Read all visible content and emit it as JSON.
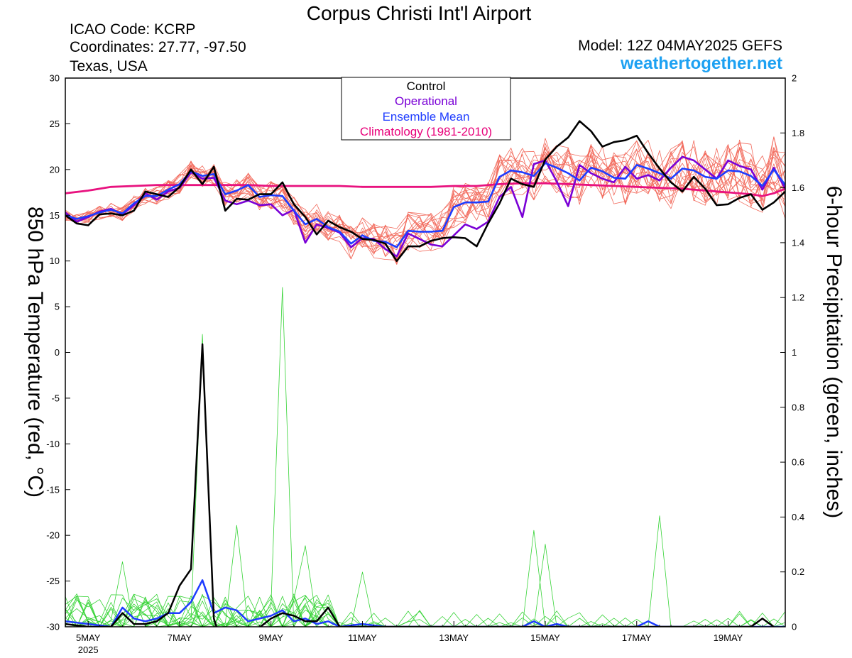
{
  "header": {
    "title": "Corpus Christi Int'l Airport",
    "icao": "ICAO Code: KCRP",
    "coordinates": "Coordinates: 27.77, -97.50",
    "location": "Texas, USA",
    "model": "Model: 12Z 04MAY2025 GEFS",
    "website": "weathertogether.net"
  },
  "chart_data": {
    "type": "line",
    "left_axis": {
      "label": "850 hPa Temperature (red, °C)",
      "range": [
        -30,
        30
      ],
      "ticks": [
        "30",
        "25",
        "20",
        "15",
        "10",
        "5",
        "0",
        "-5",
        "-10",
        "-15",
        "-20",
        "-25",
        "-30"
      ]
    },
    "right_axis": {
      "label": "6-hour Precipitation (green, inches)",
      "range": [
        0,
        2
      ],
      "ticks": [
        "2",
        "1.8",
        "1.6",
        "1.4",
        "1.2",
        "1",
        "0.8",
        "0.6",
        "0.4",
        "0.2",
        "0"
      ]
    },
    "x_axis": {
      "start_day": 4.5,
      "end_day": 20.25,
      "ticks": [
        {
          "day": 5,
          "label": "5MAY",
          "sub": "2025"
        },
        {
          "day": 7,
          "label": "7MAY"
        },
        {
          "day": 9,
          "label": "9MAY"
        },
        {
          "day": 11,
          "label": "11MAY"
        },
        {
          "day": 13,
          "label": "13MAY"
        },
        {
          "day": 15,
          "label": "15MAY"
        },
        {
          "day": 17,
          "label": "17MAY"
        },
        {
          "day": 19,
          "label": "19MAY"
        }
      ]
    },
    "legend": [
      {
        "name": "Control",
        "color": "#000000"
      },
      {
        "name": "Operational",
        "color": "#7a00d6"
      },
      {
        "name": "Ensemble Mean",
        "color": "#1e3cff"
      },
      {
        "name": "Climatology (1981-2010)",
        "color": "#e8007a"
      }
    ],
    "colors": {
      "control": "#000000",
      "operational": "#7a00d6",
      "mean": "#1e3cff",
      "climatology": "#e8127f",
      "members_temp": "#f26a5c",
      "members_precip": "#36d336"
    },
    "temperature": {
      "control": [
        [
          4.5,
          15.0
        ],
        [
          4.75,
          14.1
        ],
        [
          5.0,
          13.9
        ],
        [
          5.25,
          15.1
        ],
        [
          5.5,
          15.2
        ],
        [
          5.75,
          15.0
        ],
        [
          6.0,
          15.5
        ],
        [
          6.25,
          17.6
        ],
        [
          6.5,
          17.3
        ],
        [
          6.75,
          17.0
        ],
        [
          7.0,
          18.1
        ],
        [
          7.25,
          20.0
        ],
        [
          7.5,
          18.4
        ],
        [
          7.75,
          20.3
        ],
        [
          8.0,
          15.5
        ],
        [
          8.25,
          16.8
        ],
        [
          8.5,
          16.7
        ],
        [
          8.75,
          17.3
        ],
        [
          9.0,
          17.3
        ],
        [
          9.25,
          18.6
        ],
        [
          9.5,
          16.2
        ],
        [
          9.75,
          14.8
        ],
        [
          10.0,
          12.9
        ],
        [
          10.25,
          14.4
        ],
        [
          10.5,
          13.7
        ],
        [
          10.75,
          13.2
        ],
        [
          11.0,
          12.4
        ],
        [
          11.25,
          12.3
        ],
        [
          11.5,
          11.9
        ],
        [
          11.75,
          10.0
        ],
        [
          12.0,
          11.6
        ],
        [
          12.25,
          11.6
        ],
        [
          12.5,
          12.2
        ],
        [
          12.75,
          12.5
        ],
        [
          13.0,
          12.6
        ],
        [
          13.25,
          12.5
        ],
        [
          13.5,
          11.6
        ],
        [
          13.75,
          14.1
        ],
        [
          14.0,
          16.3
        ],
        [
          14.25,
          19.0
        ],
        [
          14.5,
          18.4
        ],
        [
          14.75,
          18.1
        ],
        [
          15.0,
          21.1
        ],
        [
          15.25,
          22.5
        ],
        [
          15.5,
          23.5
        ],
        [
          15.75,
          25.3
        ],
        [
          16.0,
          24.2
        ],
        [
          16.25,
          22.5
        ],
        [
          16.5,
          23.0
        ],
        [
          16.75,
          23.2
        ],
        [
          17.0,
          23.7
        ],
        [
          17.25,
          21.8
        ],
        [
          17.5,
          20.1
        ],
        [
          17.75,
          18.6
        ],
        [
          18.0,
          17.6
        ],
        [
          18.25,
          19.2
        ],
        [
          18.5,
          17.9
        ],
        [
          18.75,
          16.1
        ],
        [
          19.0,
          16.2
        ],
        [
          19.25,
          16.9
        ],
        [
          19.5,
          17.3
        ],
        [
          19.75,
          15.6
        ],
        [
          20.0,
          16.4
        ],
        [
          20.25,
          17.6
        ],
        [
          20.4,
          17.3
        ]
      ],
      "operational": [
        [
          4.5,
          15.3
        ],
        [
          4.75,
          14.3
        ],
        [
          5.0,
          14.8
        ],
        [
          5.25,
          15.4
        ],
        [
          5.5,
          15.7
        ],
        [
          5.75,
          15.1
        ],
        [
          6.0,
          16.1
        ],
        [
          6.25,
          17.4
        ],
        [
          6.5,
          16.7
        ],
        [
          6.75,
          17.6
        ],
        [
          7.0,
          18.0
        ],
        [
          7.25,
          19.7
        ],
        [
          7.5,
          19.0
        ],
        [
          7.75,
          19.1
        ],
        [
          8.0,
          16.6
        ],
        [
          8.25,
          16.2
        ],
        [
          8.5,
          16.6
        ],
        [
          8.75,
          16.1
        ],
        [
          9.0,
          16.2
        ],
        [
          9.25,
          15.0
        ],
        [
          9.5,
          15.6
        ],
        [
          9.75,
          12.0
        ],
        [
          10.0,
          14.0
        ],
        [
          10.25,
          13.6
        ],
        [
          10.5,
          13.1
        ],
        [
          10.75,
          11.5
        ],
        [
          11.0,
          12.5
        ],
        [
          11.25,
          12.4
        ],
        [
          11.5,
          11.3
        ],
        [
          11.75,
          10.5
        ],
        [
          12.0,
          13.0
        ],
        [
          12.25,
          12.4
        ],
        [
          12.5,
          11.8
        ],
        [
          12.75,
          11.6
        ],
        [
          13.0,
          12.8
        ],
        [
          13.25,
          14.0
        ],
        [
          13.5,
          13.5
        ],
        [
          13.75,
          14.3
        ],
        [
          14.0,
          17.0
        ],
        [
          14.25,
          18.1
        ],
        [
          14.5,
          14.8
        ],
        [
          14.75,
          20.6
        ],
        [
          15.0,
          21.0
        ],
        [
          15.25,
          18.7
        ],
        [
          15.5,
          16.0
        ],
        [
          15.75,
          20.5
        ],
        [
          16.0,
          19.6
        ],
        [
          16.25,
          19.0
        ],
        [
          16.5,
          18.6
        ],
        [
          16.75,
          20.3
        ],
        [
          17.0,
          19.0
        ],
        [
          17.25,
          19.4
        ],
        [
          17.5,
          18.8
        ],
        [
          17.75,
          20.2
        ],
        [
          18.0,
          21.4
        ],
        [
          18.25,
          21.0
        ],
        [
          18.5,
          20.0
        ],
        [
          18.75,
          19.0
        ],
        [
          19.0,
          21.0
        ],
        [
          19.25,
          20.4
        ],
        [
          19.5,
          20.0
        ],
        [
          19.75,
          17.8
        ],
        [
          20.0,
          20.2
        ],
        [
          20.25,
          17.9
        ]
      ],
      "mean": [
        [
          4.5,
          15.0
        ],
        [
          4.75,
          14.6
        ],
        [
          5.0,
          14.9
        ],
        [
          5.25,
          15.3
        ],
        [
          5.5,
          15.6
        ],
        [
          5.75,
          15.2
        ],
        [
          6.0,
          16.3
        ],
        [
          6.25,
          17.1
        ],
        [
          6.5,
          17.1
        ],
        [
          6.75,
          17.8
        ],
        [
          7.0,
          18.4
        ],
        [
          7.25,
          19.8
        ],
        [
          7.5,
          19.3
        ],
        [
          7.75,
          19.5
        ],
        [
          8.0,
          17.3
        ],
        [
          8.25,
          17.7
        ],
        [
          8.5,
          18.3
        ],
        [
          8.75,
          17.0
        ],
        [
          9.0,
          17.2
        ],
        [
          9.25,
          17.1
        ],
        [
          9.5,
          15.5
        ],
        [
          9.75,
          14.0
        ],
        [
          10.0,
          14.6
        ],
        [
          10.25,
          13.7
        ],
        [
          10.5,
          13.2
        ],
        [
          10.75,
          11.9
        ],
        [
          11.0,
          12.8
        ],
        [
          11.25,
          12.2
        ],
        [
          11.5,
          12.1
        ],
        [
          11.75,
          11.5
        ],
        [
          12.0,
          13.3
        ],
        [
          12.25,
          13.2
        ],
        [
          12.5,
          13.2
        ],
        [
          12.75,
          13.3
        ],
        [
          13.0,
          15.9
        ],
        [
          13.25,
          16.4
        ],
        [
          13.5,
          16.4
        ],
        [
          13.75,
          16.5
        ],
        [
          14.0,
          19.2
        ],
        [
          14.25,
          19.9
        ],
        [
          14.5,
          19.7
        ],
        [
          14.75,
          19.3
        ],
        [
          15.0,
          20.7
        ],
        [
          15.25,
          20.2
        ],
        [
          15.5,
          19.6
        ],
        [
          15.75,
          18.8
        ],
        [
          16.0,
          20.2
        ],
        [
          16.25,
          19.8
        ],
        [
          16.5,
          19.1
        ],
        [
          16.75,
          19.0
        ],
        [
          17.0,
          20.5
        ],
        [
          17.25,
          20.1
        ],
        [
          17.5,
          19.6
        ],
        [
          17.75,
          19.0
        ],
        [
          18.0,
          20.1
        ],
        [
          18.25,
          19.9
        ],
        [
          18.5,
          19.2
        ],
        [
          18.75,
          19.0
        ],
        [
          19.0,
          19.9
        ],
        [
          19.25,
          19.8
        ],
        [
          19.5,
          19.3
        ],
        [
          19.75,
          18.2
        ],
        [
          20.0,
          20.0
        ],
        [
          20.25,
          18.3
        ]
      ],
      "climatology": [
        [
          4.5,
          17.4
        ],
        [
          5.0,
          17.7
        ],
        [
          5.5,
          18.1
        ],
        [
          6.0,
          18.2
        ],
        [
          6.5,
          18.3
        ],
        [
          7.0,
          18.3
        ],
        [
          7.5,
          18.3
        ],
        [
          8.0,
          18.3
        ],
        [
          8.5,
          18.3
        ],
        [
          9.0,
          18.2
        ],
        [
          9.5,
          18.2
        ],
        [
          10.0,
          18.2
        ],
        [
          10.5,
          18.2
        ],
        [
          11.0,
          18.1
        ],
        [
          11.5,
          18.1
        ],
        [
          12.0,
          18.1
        ],
        [
          12.5,
          18.1
        ],
        [
          13.0,
          18.2
        ],
        [
          13.5,
          18.2
        ],
        [
          14.0,
          18.4
        ],
        [
          14.5,
          18.5
        ],
        [
          15.0,
          18.5
        ],
        [
          15.5,
          18.4
        ],
        [
          16.0,
          18.3
        ],
        [
          16.5,
          18.2
        ],
        [
          17.0,
          18.1
        ],
        [
          17.5,
          18.0
        ],
        [
          18.0,
          17.9
        ],
        [
          18.5,
          17.7
        ],
        [
          19.0,
          17.5
        ],
        [
          19.5,
          17.3
        ],
        [
          19.75,
          17.1
        ],
        [
          20.0,
          17.4
        ],
        [
          20.25,
          17.9
        ]
      ]
    },
    "precipitation": {
      "control": [
        [
          4.5,
          0.01
        ],
        [
          5.0,
          0.0
        ],
        [
          5.5,
          0.0
        ],
        [
          5.75,
          0.05
        ],
        [
          6.0,
          0.01
        ],
        [
          6.25,
          0.01
        ],
        [
          6.5,
          0.02
        ],
        [
          6.75,
          0.05
        ],
        [
          7.0,
          0.15
        ],
        [
          7.25,
          0.21
        ],
        [
          7.5,
          1.03
        ],
        [
          7.75,
          0.03
        ],
        [
          8.0,
          -0.1
        ],
        [
          9.0,
          0.03
        ],
        [
          9.25,
          0.05
        ],
        [
          9.5,
          0.04
        ],
        [
          9.75,
          0.02
        ],
        [
          10.0,
          0.02
        ],
        [
          10.25,
          0.07
        ],
        [
          10.5,
          0.0
        ],
        [
          11.0,
          0.0
        ],
        [
          19.5,
          0.0
        ],
        [
          19.75,
          0.03
        ],
        [
          20.0,
          0.0
        ]
      ],
      "mean": [
        [
          4.5,
          0.02
        ],
        [
          5.0,
          0.01
        ],
        [
          5.5,
          0.0
        ],
        [
          5.75,
          0.07
        ],
        [
          6.0,
          0.03
        ],
        [
          6.25,
          0.02
        ],
        [
          6.5,
          0.03
        ],
        [
          6.75,
          0.05
        ],
        [
          7.0,
          0.05
        ],
        [
          7.25,
          0.09
        ],
        [
          7.5,
          0.17
        ],
        [
          7.75,
          0.05
        ],
        [
          8.0,
          0.07
        ],
        [
          8.25,
          0.06
        ],
        [
          8.5,
          0.02
        ],
        [
          8.75,
          0.03
        ],
        [
          9.0,
          0.04
        ],
        [
          9.25,
          0.06
        ],
        [
          9.5,
          0.02
        ],
        [
          9.75,
          0.03
        ],
        [
          10.0,
          0.01
        ],
        [
          10.25,
          0.02
        ],
        [
          10.5,
          0.0
        ],
        [
          11.0,
          0.01
        ],
        [
          11.5,
          0.0
        ],
        [
          12.0,
          0.0
        ],
        [
          14.5,
          0.0
        ],
        [
          14.75,
          0.02
        ],
        [
          15.0,
          0.0
        ],
        [
          15.25,
          0.01
        ],
        [
          15.5,
          0.0
        ],
        [
          17.0,
          0.0
        ],
        [
          17.25,
          0.02
        ],
        [
          17.5,
          0.0
        ],
        [
          20.25,
          0.0
        ]
      ]
    },
    "peak_precip": {
      "day": 7.5,
      "value": 1.17
    }
  }
}
